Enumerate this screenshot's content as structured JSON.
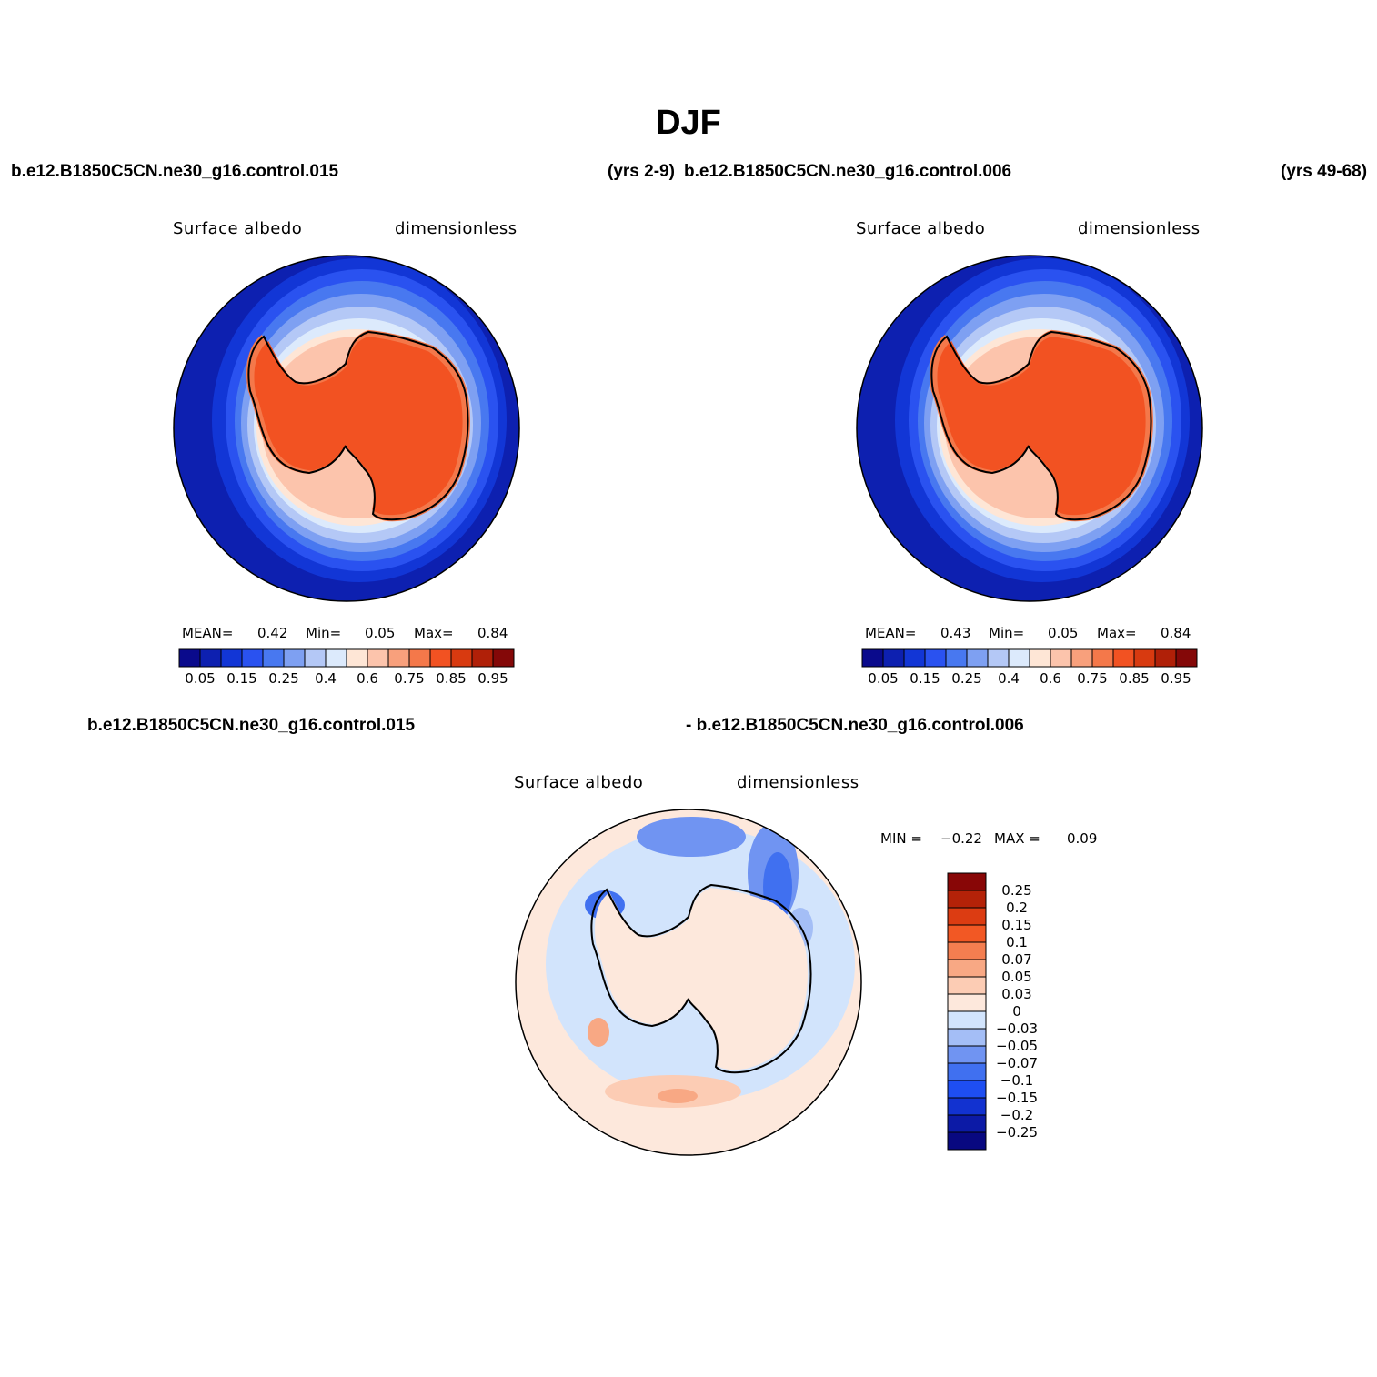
{
  "title": "DJF",
  "top_case_left": "b.e12.B1850C5CN.ne30_g16.control.015",
  "top_yrs_left": "(yrs 2-9)",
  "top_case_right": "b.e12.B1850C5CN.ne30_g16.control.006",
  "top_yrs_right": "(yrs 49-68)",
  "diff_case_a": "b.e12.B1850C5CN.ne30_g16.control.015",
  "diff_case_b": "- b.e12.B1850C5CN.ne30_g16.control.006",
  "panels": [
    {
      "variable": "Surface  albedo",
      "units": "dimensionless",
      "mean_label": "MEAN=",
      "mean": "0.42",
      "min_label": "Min=",
      "min": "0.05",
      "max_label": "Max=",
      "max": "0.84"
    },
    {
      "variable": "Surface  albedo",
      "units": "dimensionless",
      "mean_label": "MEAN=",
      "mean": "0.43",
      "min_label": "Min=",
      "min": "0.05",
      "max_label": "Max=",
      "max": "0.84"
    },
    {
      "variable": "Surface  albedo",
      "units": "dimensionless",
      "min_label": "MIN =",
      "min": "−0.22",
      "max_label": "MAX =",
      "max": "0.09"
    }
  ],
  "abs_colorbar": {
    "colors": [
      "#0a0a8c",
      "#0d20b0",
      "#1236d6",
      "#2a52f0",
      "#4878f0",
      "#7ea0f2",
      "#b4c8f6",
      "#dceafc",
      "#fee6d6",
      "#fcc4ac",
      "#f8a07c",
      "#f4784a",
      "#f25222",
      "#d83a10",
      "#b02008",
      "#840808"
    ],
    "tick_labels": [
      "0.05",
      "0.15",
      "0.25",
      "0.4",
      "0.6",
      "0.75",
      "0.85",
      "0.95"
    ]
  },
  "diff_colorbar": {
    "colors": [
      "#080880",
      "#0c1aa6",
      "#1232d0",
      "#1e4ef2",
      "#4070f0",
      "#7094f2",
      "#a4bef6",
      "#d2e4fc",
      "#fde8dc",
      "#fcccb4",
      "#f8a884",
      "#f47e50",
      "#f25824",
      "#dc3c12",
      "#b42208",
      "#880606"
    ],
    "tick_labels": [
      "−0.25",
      "−0.2",
      "−0.15",
      "−0.1",
      "−0.07",
      "−0.05",
      "−0.03",
      "0",
      "0.03",
      "0.05",
      "0.07",
      "0.1",
      "0.15",
      "0.2",
      "0.25"
    ]
  }
}
